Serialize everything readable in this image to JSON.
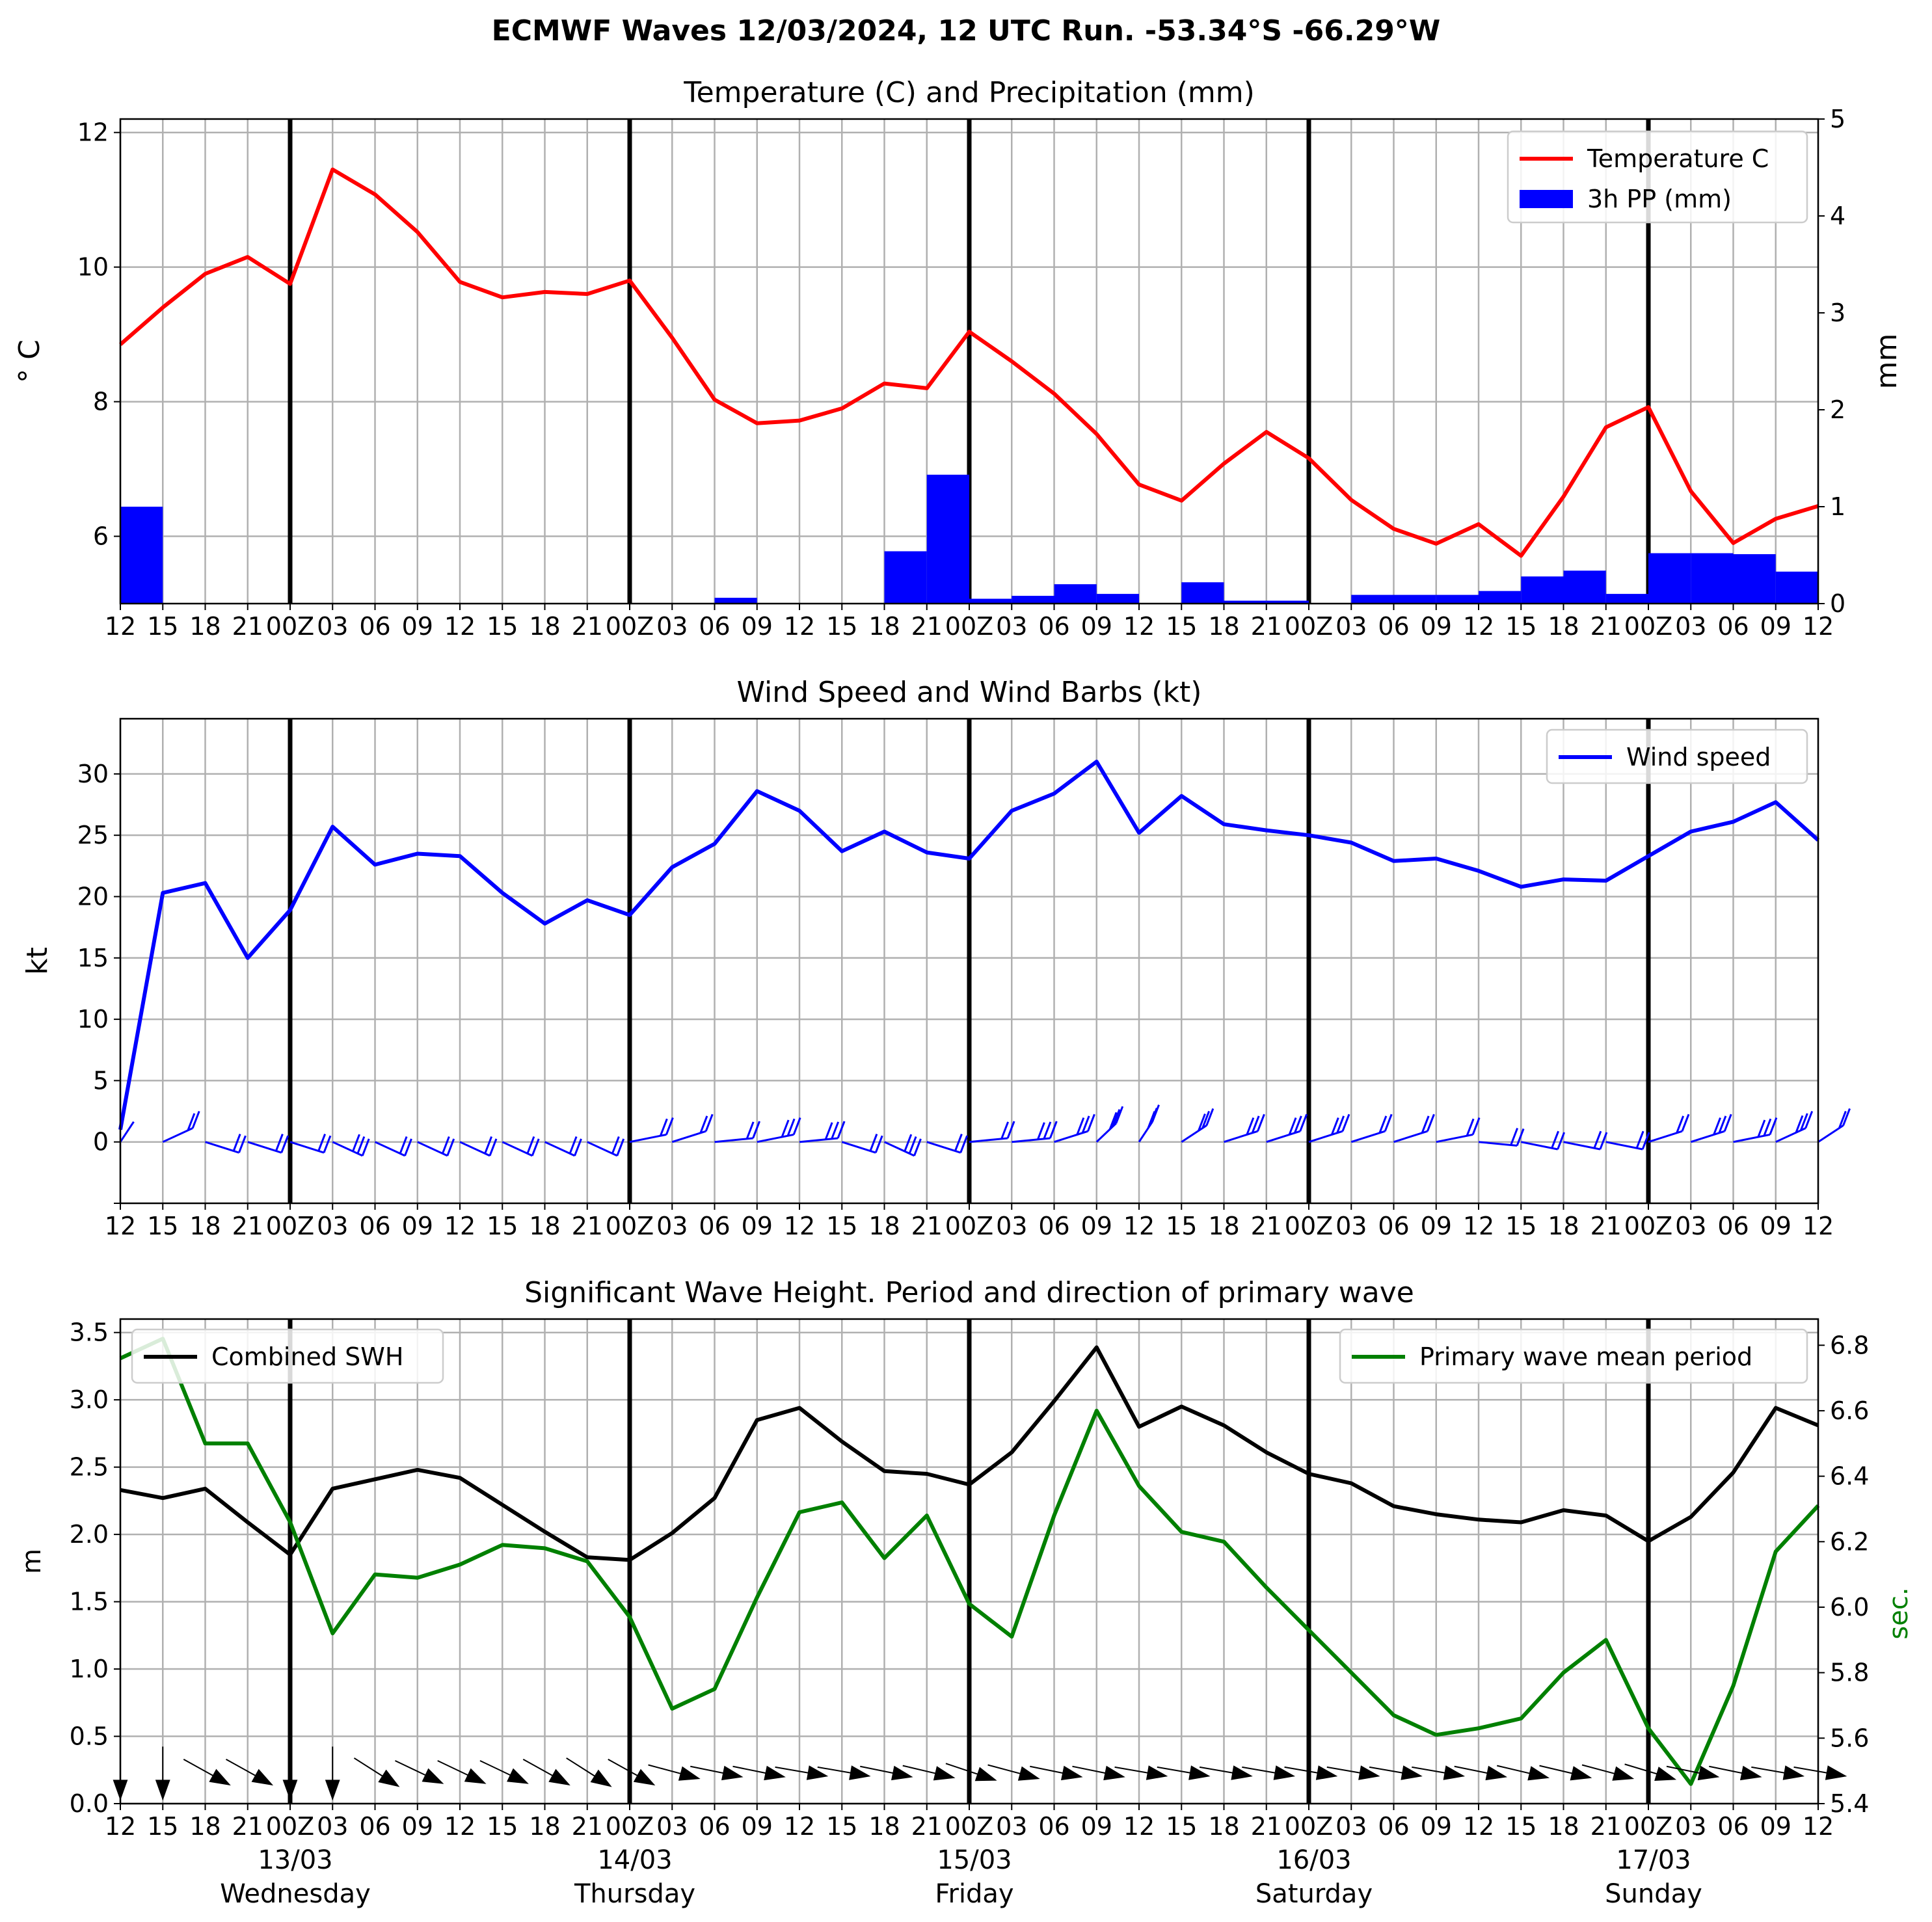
{
  "page": {
    "suptitle": "ECMWF Waves 12/03/2024, 12 UTC Run. -53.34°S -66.29°W"
  },
  "x_axis": {
    "tick_labels": [
      "12",
      "15",
      "18",
      "21",
      "00Z",
      "03",
      "06",
      "09",
      "12",
      "15",
      "18",
      "21",
      "00Z",
      "03",
      "06",
      "09",
      "12",
      "15",
      "18",
      "21",
      "00Z",
      "03",
      "06",
      "09",
      "12",
      "15",
      "18",
      "21",
      "00Z",
      "03",
      "06",
      "09",
      "12",
      "15",
      "18",
      "21",
      "00Z",
      "03",
      "06",
      "09",
      "12"
    ],
    "day_labels": [
      {
        "date": "13/03",
        "day": "Wednesday"
      },
      {
        "date": "14/03",
        "day": "Thursday"
      },
      {
        "date": "15/03",
        "day": "Friday"
      },
      {
        "date": "16/03",
        "day": "Saturday"
      },
      {
        "date": "17/03",
        "day": "Sunday"
      }
    ]
  },
  "chart_data": [
    {
      "type": "line",
      "title": "Temperature (C) and Precipitation (mm)",
      "ylabel": "$^\\circ$C",
      "ylabel_display": "° C",
      "y2label": "mm",
      "ylim": [
        5.0,
        12.2
      ],
      "y2lim": [
        0,
        5
      ],
      "yticks": [
        "6",
        "8",
        "10",
        "12"
      ],
      "y2ticks": [
        "0",
        "1",
        "2",
        "3",
        "4",
        "5"
      ],
      "legend": [
        "Temperature C",
        "3h PP (mm)"
      ],
      "legend_position": "upper right",
      "grid": true,
      "series": [
        {
          "name": "Temperature C",
          "color": "#ff0000",
          "values": [
            8.85,
            9.4,
            9.9,
            10.15,
            9.75,
            11.45,
            11.08,
            10.52,
            9.78,
            9.55,
            9.63,
            9.6,
            9.8,
            8.95,
            8.03,
            7.68,
            7.72,
            7.9,
            8.27,
            8.2,
            9.04,
            8.6,
            8.12,
            7.52,
            6.77,
            6.53,
            7.08,
            7.55,
            7.16,
            6.54,
            6.11,
            5.89,
            6.18,
            5.71,
            6.59,
            7.62,
            7.92,
            6.67,
            5.9,
            6.26,
            6.45
          ]
        },
        {
          "name": "3h PP (mm)",
          "color": "#0000ff",
          "type": "bar",
          "values": [
            1.0,
            0,
            0,
            0,
            0,
            0,
            0,
            0,
            0,
            0,
            0,
            0,
            0,
            0,
            0.06,
            0,
            0,
            0,
            0.54,
            1.33,
            0.05,
            0.08,
            0.2,
            0.1,
            0,
            0.22,
            0.03,
            0.03,
            0,
            0.09,
            0.09,
            0.09,
            0.13,
            0.28,
            0.34,
            0.1,
            0.52,
            0.52,
            0.51,
            0.33
          ]
        }
      ]
    },
    {
      "type": "line",
      "title": "Wind Speed and Wind Barbs (kt)",
      "ylabel": "kt",
      "ylim": [
        -5,
        34.5
      ],
      "yticks": [
        "0",
        "5",
        "10",
        "15",
        "20",
        "25",
        "30"
      ],
      "legend": [
        "Wind speed"
      ],
      "legend_position": "upper right",
      "grid": true,
      "series": [
        {
          "name": "Wind speed",
          "color": "#0000ff",
          "values": [
            1.0,
            20.3,
            21.1,
            15.0,
            18.9,
            25.7,
            22.6,
            23.5,
            23.3,
            20.3,
            17.8,
            19.7,
            18.5,
            22.4,
            24.3,
            28.6,
            27.0,
            23.7,
            25.3,
            23.6,
            23.1,
            27.0,
            28.4,
            31.0,
            25.2,
            28.2,
            25.9,
            25.4,
            25.0,
            24.4,
            22.9,
            23.1,
            22.1,
            20.8,
            21.4,
            21.3,
            23.3,
            25.3,
            26.1,
            27.7,
            24.6
          ]
        },
        {
          "name": "Wind barbs",
          "color": "#0000ff",
          "kind": "barbs",
          "direction_deg": [
            340,
            310,
            240,
            240,
            240,
            230,
            230,
            230,
            230,
            230,
            230,
            230,
            290,
            300,
            280,
            290,
            280,
            240,
            230,
            240,
            280,
            280,
            300,
            330,
            340,
            320,
            300,
            300,
            300,
            300,
            300,
            290,
            260,
            250,
            250,
            250,
            300,
            300,
            290,
            310,
            320
          ]
        }
      ]
    },
    {
      "type": "line",
      "title": "Significant Wave Height. Period and direction of primary wave",
      "ylabel": "m",
      "y2label": "sec.",
      "ylim": [
        0,
        3.6
      ],
      "y2lim": [
        5.4,
        6.88
      ],
      "yticks": [
        "0.0",
        "0.5",
        "1.0",
        "1.5",
        "2.0",
        "2.5",
        "3.0",
        "3.5"
      ],
      "y2ticks": [
        "5.4",
        "5.6",
        "5.8",
        "6.0",
        "6.2",
        "6.4",
        "6.6",
        "6.8"
      ],
      "legend": [
        "Combined SWH",
        "Primary wave mean period"
      ],
      "legend_position": "upper left / upper right",
      "grid": true,
      "series": [
        {
          "name": "Combined SWH",
          "color": "#000000",
          "values": [
            2.33,
            2.27,
            2.34,
            2.09,
            1.85,
            2.34,
            2.41,
            2.48,
            2.42,
            2.22,
            2.02,
            1.83,
            1.81,
            2.01,
            2.27,
            2.85,
            2.94,
            2.69,
            2.47,
            2.45,
            2.37,
            2.61,
            2.99,
            3.39,
            2.8,
            2.95,
            2.81,
            2.61,
            2.45,
            2.38,
            2.21,
            2.15,
            2.11,
            2.09,
            2.18,
            2.14,
            1.95,
            2.13,
            2.46,
            2.94,
            2.81
          ]
        },
        {
          "name": "Primary wave mean period",
          "color": "#008000",
          "values": [
            6.76,
            6.82,
            6.5,
            6.5,
            6.26,
            5.92,
            6.1,
            6.09,
            6.13,
            6.19,
            6.18,
            6.14,
            5.97,
            5.69,
            5.75,
            6.03,
            6.29,
            6.32,
            6.15,
            6.28,
            6.01,
            5.91,
            6.28,
            6.6,
            6.37,
            6.23,
            6.2,
            6.06,
            5.93,
            5.8,
            5.67,
            5.61,
            5.63,
            5.66,
            5.8,
            5.9,
            5.63,
            5.46,
            5.76,
            6.17,
            6.31
          ]
        },
        {
          "name": "Primary wave direction",
          "color": "#000000",
          "kind": "arrows",
          "direction_deg": [
            0,
            0,
            330,
            330,
            0,
            0,
            340,
            320,
            320,
            320,
            330,
            340,
            330,
            290,
            280,
            280,
            275,
            275,
            280,
            285,
            300,
            290,
            280,
            280,
            275,
            275,
            275,
            275,
            275,
            275,
            275,
            275,
            280,
            285,
            285,
            290,
            295,
            280,
            280,
            275,
            275
          ]
        }
      ]
    }
  ]
}
